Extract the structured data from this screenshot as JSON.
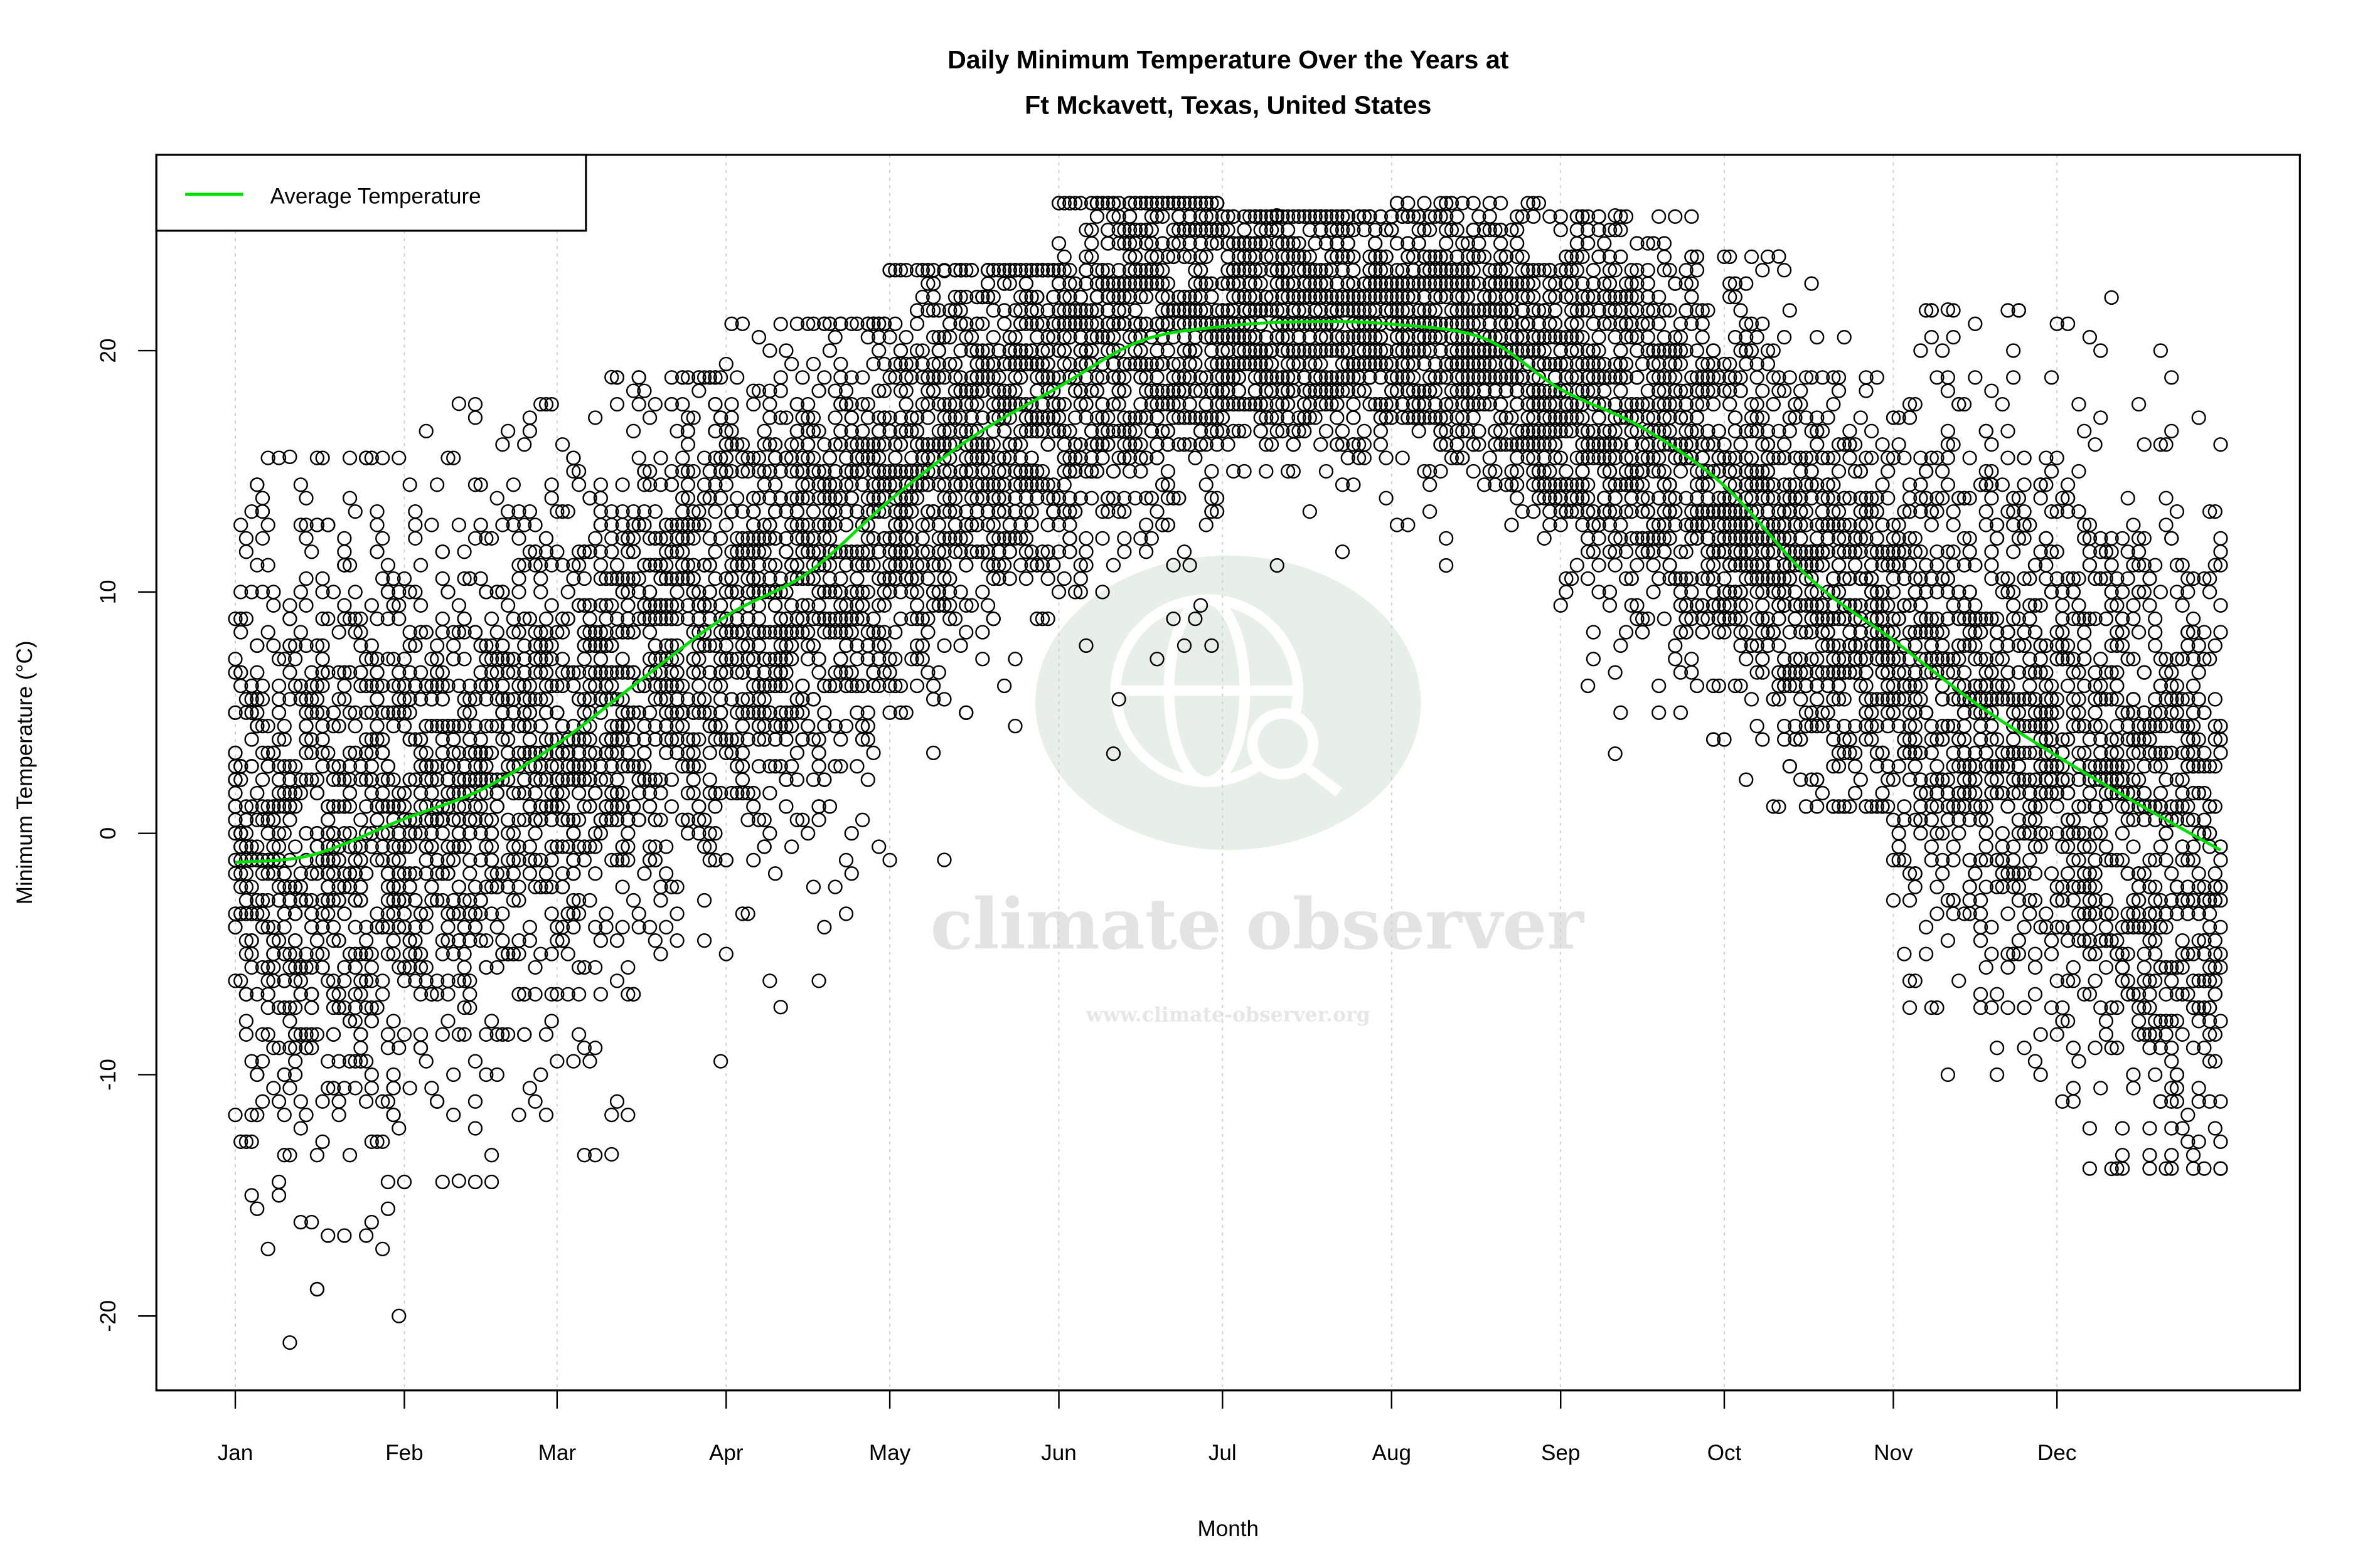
{
  "chart_data": {
    "type": "scatter",
    "title_line1": "Daily Minimum Temperature Over the Years at",
    "title_line2": "Ft Mckavett, Texas, United States",
    "xlabel": "Month",
    "ylabel": "Minimum Temperature (°C)",
    "x_ticks": [
      {
        "label": "Jan",
        "day": 1
      },
      {
        "label": "Feb",
        "day": 32
      },
      {
        "label": "Mar",
        "day": 60
      },
      {
        "label": "Apr",
        "day": 91
      },
      {
        "label": "May",
        "day": 121
      },
      {
        "label": "Jun",
        "day": 152
      },
      {
        "label": "Jul",
        "day": 182
      },
      {
        "label": "Aug",
        "day": 213
      },
      {
        "label": "Sep",
        "day": 244
      },
      {
        "label": "Oct",
        "day": 274
      },
      {
        "label": "Nov",
        "day": 305
      },
      {
        "label": "Dec",
        "day": 335
      }
    ],
    "y_ticks": [
      "-20",
      "-10",
      "0",
      "10",
      "20"
    ],
    "ylim": [
      -22.5,
      28
    ],
    "xlim": [
      -13,
      380
    ],
    "grid": "vertical dotted at month ticks",
    "legend": {
      "position": "top-left",
      "entries": [
        {
          "label": "Average Temperature",
          "color": "#00dd00"
        }
      ]
    },
    "marker": "open circle, black",
    "monthly_observed_range_c": [
      {
        "month": "Jan",
        "min": -21.1,
        "max": 15.6
      },
      {
        "month": "Feb",
        "min": -14.4,
        "max": 17.8
      },
      {
        "month": "Mar",
        "min": -13.3,
        "max": 18.9
      },
      {
        "month": "Apr",
        "min": -7.2,
        "max": 21.1
      },
      {
        "month": "May",
        "min": -1.1,
        "max": 23.3
      },
      {
        "month": "Jun",
        "min": 3.3,
        "max": 26.1
      },
      {
        "month": "Jul",
        "min": 11.1,
        "max": 25.6
      },
      {
        "month": "Aug",
        "min": 11.1,
        "max": 26.1
      },
      {
        "month": "Sep",
        "min": 3.3,
        "max": 25.6
      },
      {
        "month": "Oct",
        "min": 1.1,
        "max": 23.9
      },
      {
        "month": "Nov",
        "min": -10.0,
        "max": 21.7
      },
      {
        "month": "Dec",
        "min": -13.9,
        "max": 22.2
      }
    ],
    "average_series": {
      "name": "Average Temperature",
      "color": "#00dd00",
      "points": [
        {
          "day": 1,
          "value": -1.2
        },
        {
          "day": 15,
          "value": -0.9
        },
        {
          "day": 32,
          "value": 0.6
        },
        {
          "day": 46,
          "value": 1.8
        },
        {
          "day": 60,
          "value": 3.7
        },
        {
          "day": 75,
          "value": 6.3
        },
        {
          "day": 91,
          "value": 9.0
        },
        {
          "day": 106,
          "value": 10.8
        },
        {
          "day": 121,
          "value": 13.8
        },
        {
          "day": 136,
          "value": 16.4
        },
        {
          "day": 152,
          "value": 18.5
        },
        {
          "day": 167,
          "value": 20.4
        },
        {
          "day": 182,
          "value": 21.0
        },
        {
          "day": 197,
          "value": 21.2
        },
        {
          "day": 213,
          "value": 21.1
        },
        {
          "day": 230,
          "value": 20.5
        },
        {
          "day": 244,
          "value": 18.4
        },
        {
          "day": 259,
          "value": 16.8
        },
        {
          "day": 274,
          "value": 14.4
        },
        {
          "day": 290,
          "value": 10.5
        },
        {
          "day": 305,
          "value": 8.0
        },
        {
          "day": 320,
          "value": 5.4
        },
        {
          "day": 335,
          "value": 3.2
        },
        {
          "day": 350,
          "value": 1.2
        },
        {
          "day": 365,
          "value": -0.7
        }
      ]
    }
  },
  "watermark": {
    "brand": "climate observer",
    "url": "www.climate-observer.org"
  }
}
